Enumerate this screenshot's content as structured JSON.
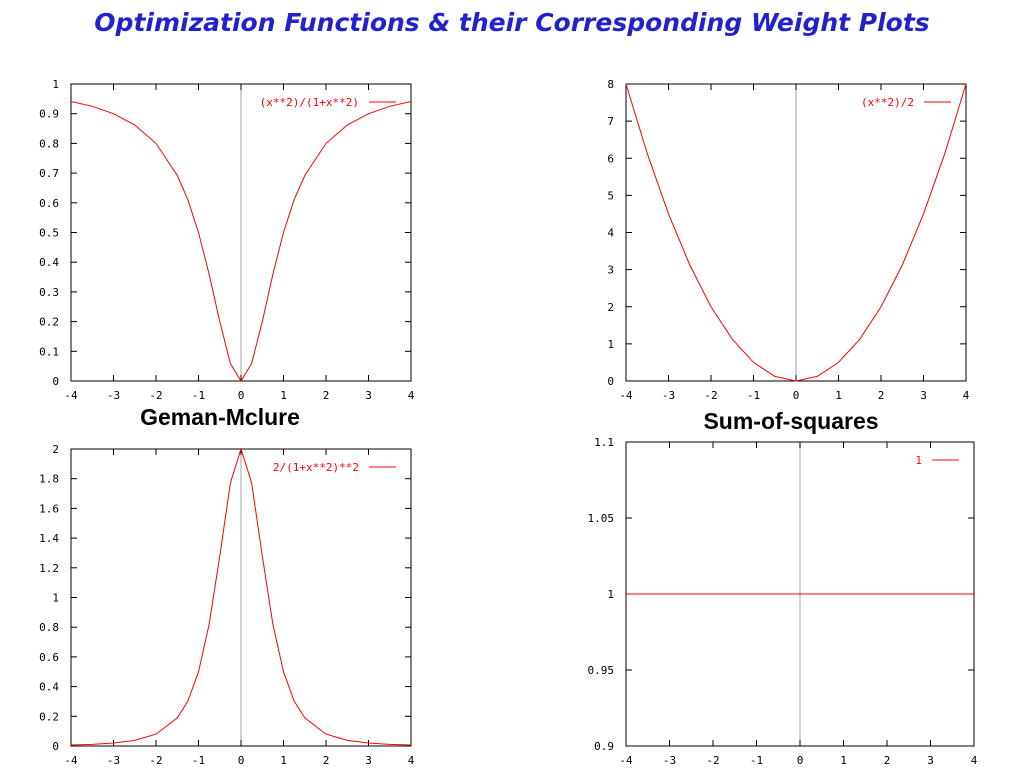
{
  "title": "Optimization Functions & their Corresponding Weight Plots",
  "labels": {
    "geman_mclure": "Geman-Mclure",
    "sum_of_squares": "Sum-of-squares"
  },
  "colors": {
    "title": "#2222cc",
    "curve": "#ff0000",
    "axes": "#000000",
    "zero_axis": "#a0a0a0"
  },
  "chart_data": [
    {
      "type": "line",
      "xlim": [
        -4,
        4
      ],
      "ylim": [
        0,
        1
      ],
      "xticks": [
        -4,
        -3,
        -2,
        -1,
        0,
        1,
        2,
        3,
        4
      ],
      "xtick_labels": [
        "-4",
        "-3",
        "-2",
        "-1",
        "0",
        "1",
        "2",
        "3",
        "4"
      ],
      "yticks": [
        0,
        0.1,
        0.2,
        0.3,
        0.4,
        0.5,
        0.6,
        0.7,
        0.8,
        0.9,
        1
      ],
      "ytick_labels": [
        "0",
        "0.1",
        "0.2",
        "0.3",
        "0.4",
        "0.5",
        "0.6",
        "0.7",
        "0.8",
        "0.9",
        "1"
      ],
      "legend_position": "top-right",
      "series": [
        {
          "name": "(x**2)/(1+x**2)",
          "x": [
            -4,
            -3.5,
            -3,
            -2.5,
            -2,
            -1.5,
            -1.25,
            -1,
            -0.75,
            -0.5,
            -0.25,
            0,
            0.25,
            0.5,
            0.75,
            1,
            1.25,
            1.5,
            2,
            2.5,
            3,
            3.5,
            4
          ],
          "y": [
            0.941,
            0.925,
            0.9,
            0.862,
            0.8,
            0.692,
            0.61,
            0.5,
            0.36,
            0.2,
            0.059,
            0,
            0.059,
            0.2,
            0.36,
            0.5,
            0.61,
            0.692,
            0.8,
            0.862,
            0.9,
            0.925,
            0.941
          ]
        }
      ]
    },
    {
      "type": "line",
      "xlim": [
        -4,
        4
      ],
      "ylim": [
        0,
        8
      ],
      "xticks": [
        -4,
        -3,
        -2,
        -1,
        0,
        1,
        2,
        3,
        4
      ],
      "xtick_labels": [
        "-4",
        "-3",
        "-2",
        "-1",
        "0",
        "1",
        "2",
        "3",
        "4"
      ],
      "yticks": [
        0,
        1,
        2,
        3,
        4,
        5,
        6,
        7,
        8
      ],
      "ytick_labels": [
        "0",
        "1",
        "2",
        "3",
        "4",
        "5",
        "6",
        "7",
        "8"
      ],
      "legend_position": "top-right",
      "series": [
        {
          "name": "(x**2)/2",
          "x": [
            -4,
            -3.5,
            -3,
            -2.5,
            -2,
            -1.5,
            -1,
            -0.5,
            0,
            0.5,
            1,
            1.5,
            2,
            2.5,
            3,
            3.5,
            4
          ],
          "y": [
            8,
            6.125,
            4.5,
            3.125,
            2,
            1.125,
            0.5,
            0.125,
            0,
            0.125,
            0.5,
            1.125,
            2,
            3.125,
            4.5,
            6.125,
            8
          ]
        }
      ]
    },
    {
      "type": "line",
      "xlim": [
        -4,
        4
      ],
      "ylim": [
        0,
        2
      ],
      "xticks": [
        -4,
        -3,
        -2,
        -1,
        0,
        1,
        2,
        3,
        4
      ],
      "xtick_labels": [
        "-4",
        "-3",
        "-2",
        "-1",
        "0",
        "1",
        "2",
        "3",
        "4"
      ],
      "yticks": [
        0,
        0.2,
        0.4,
        0.6,
        0.8,
        1,
        1.2,
        1.4,
        1.6,
        1.8,
        2
      ],
      "ytick_labels": [
        "0",
        "0.2",
        "0.4",
        "0.6",
        "0.8",
        "1",
        "1.2",
        "1.4",
        "1.6",
        "1.8",
        "2"
      ],
      "legend_position": "top-right",
      "series": [
        {
          "name": "2/(1+x**2)**2",
          "x": [
            -4,
            -3.5,
            -3,
            -2.5,
            -2,
            -1.5,
            -1.25,
            -1,
            -0.75,
            -0.5,
            -0.25,
            0,
            0.25,
            0.5,
            0.75,
            1,
            1.25,
            1.5,
            2,
            2.5,
            3,
            3.5,
            4
          ],
          "y": [
            0.007,
            0.011,
            0.02,
            0.038,
            0.08,
            0.189,
            0.303,
            0.5,
            0.819,
            1.28,
            1.772,
            2,
            1.772,
            1.28,
            0.819,
            0.5,
            0.303,
            0.189,
            0.08,
            0.038,
            0.02,
            0.011,
            0.007
          ]
        }
      ]
    },
    {
      "type": "line",
      "xlim": [
        -4,
        4
      ],
      "ylim": [
        0.9,
        1.1
      ],
      "xticks": [
        -4,
        -3,
        -2,
        -1,
        0,
        1,
        2,
        3,
        4
      ],
      "xtick_labels": [
        "-4",
        "-3",
        "-2",
        "-1",
        "0",
        "1",
        "2",
        "3",
        "4"
      ],
      "yticks": [
        0.9,
        0.95,
        1,
        1.05,
        1.1
      ],
      "ytick_labels": [
        "0.9",
        "0.95",
        "1",
        "1.05",
        "1.1"
      ],
      "legend_position": "top-right",
      "series": [
        {
          "name": "1",
          "x": [
            -4,
            4
          ],
          "y": [
            1,
            1
          ]
        }
      ]
    }
  ]
}
